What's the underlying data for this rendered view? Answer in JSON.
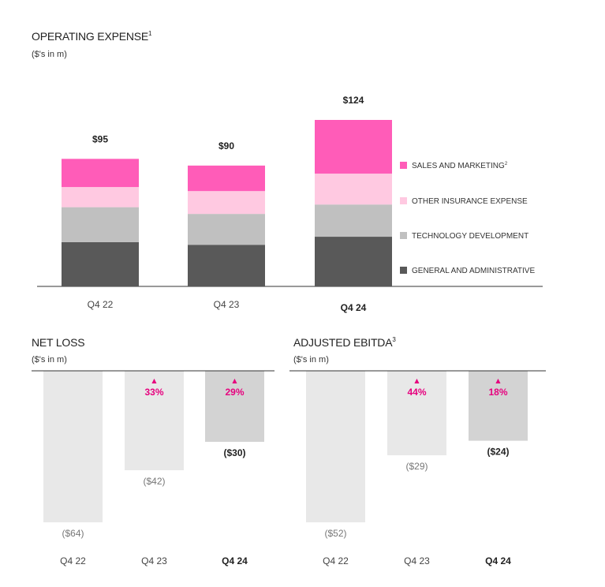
{
  "colors": {
    "sales_marketing": "#ff5cb8",
    "other_insurance": "#ffc9e1",
    "technology": "#c0c0c0",
    "general_admin": "#595959",
    "bar_light": "#e8e8e8",
    "bar_highlight": "#d3d3d3",
    "accent": "#e6007e"
  },
  "operating_expense": {
    "title": "OPERATING EXPENSE",
    "title_sup": "1",
    "unit": "($'s in m)",
    "legend": [
      {
        "label": "SALES AND MARKETING",
        "sup": "2",
        "color_key": "sales_marketing"
      },
      {
        "label": "OTHER INSURANCE EXPENSE",
        "sup": "",
        "color_key": "other_insurance"
      },
      {
        "label": "TECHNOLOGY DEVELOPMENT",
        "sup": "",
        "color_key": "technology"
      },
      {
        "label": "GENERAL AND ADMINISTRATIVE",
        "sup": "",
        "color_key": "general_admin"
      }
    ]
  },
  "net_loss": {
    "title": "NET LOSS",
    "unit": "($'s in m)"
  },
  "adjusted_ebitda": {
    "title": "ADJUSTED EBITDA",
    "title_sup": "3",
    "unit": "($'s in m)"
  },
  "chart_data": [
    {
      "type": "bar",
      "stacked": true,
      "title": "OPERATING EXPENSE",
      "categories": [
        "Q4 22",
        "Q4 23",
        "Q4 24"
      ],
      "highlight_category": "Q4 24",
      "totals": [
        95,
        90,
        124
      ],
      "total_labels": [
        "$95",
        "$90",
        "$124"
      ],
      "series": [
        {
          "name": "GENERAL AND ADMINISTRATIVE",
          "values": [
            33,
            31,
            37
          ]
        },
        {
          "name": "TECHNOLOGY DEVELOPMENT",
          "values": [
            26,
            23,
            24
          ]
        },
        {
          "name": "OTHER INSURANCE EXPENSE",
          "values": [
            15,
            17,
            23
          ]
        },
        {
          "name": "SALES AND MARKETING",
          "values": [
            21,
            19,
            40
          ]
        }
      ],
      "ylim": [
        0,
        124
      ]
    },
    {
      "type": "bar",
      "title": "NET LOSS",
      "categories": [
        "Q4 22",
        "Q4 23",
        "Q4 24"
      ],
      "highlight_category": "Q4 24",
      "values": [
        -64,
        -42,
        -30
      ],
      "value_labels": [
        "($64)",
        "($42)",
        "($30)"
      ],
      "changes": [
        "",
        "33%",
        "29%"
      ],
      "change_marker": "▲",
      "ylim": [
        -64,
        0
      ]
    },
    {
      "type": "bar",
      "title": "ADJUSTED EBITDA",
      "categories": [
        "Q4 22",
        "Q4 23",
        "Q4 24"
      ],
      "highlight_category": "Q4 24",
      "values": [
        -52,
        -29,
        -24
      ],
      "value_labels": [
        "($52)",
        "($29)",
        "($24)"
      ],
      "changes": [
        "",
        "44%",
        "18%"
      ],
      "change_marker": "▲",
      "ylim": [
        -52,
        0
      ]
    }
  ]
}
